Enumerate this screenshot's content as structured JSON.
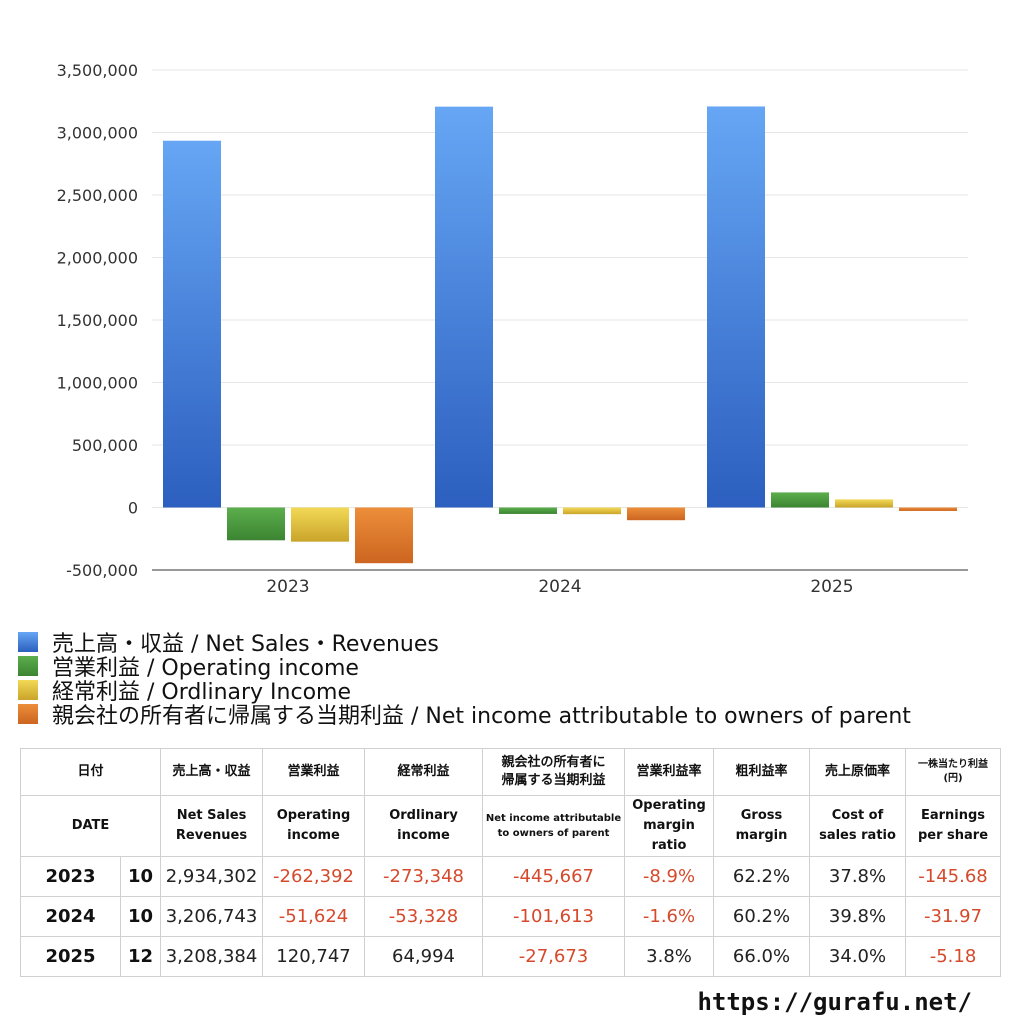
{
  "chart_data": {
    "type": "bar",
    "categories": [
      "2023",
      "2024",
      "2025"
    ],
    "ylim": [
      -500000,
      3500000
    ],
    "yticks": [
      3500000,
      3000000,
      2500000,
      2000000,
      1500000,
      1000000,
      500000,
      0,
      -500000
    ],
    "ytick_labels": [
      "3,500,000",
      "3,000,000",
      "2,500,000",
      "2,000,000",
      "1,500,000",
      "1,000,000",
      "500,000",
      "0",
      "-500,000"
    ],
    "grid": true,
    "legend_position": "bottom",
    "series": [
      {
        "name": "売上高・収益 / Net Sales・Revenues",
        "color": "#4d8ee8",
        "values": [
          2934302,
          3206743,
          3208384
        ]
      },
      {
        "name": "営業利益 / Operating income",
        "color": "#4c9a3f",
        "values": [
          -262392,
          -51624,
          120747
        ]
      },
      {
        "name": "経常利益 / Ordlinary Income",
        "color": "#e0c23a",
        "values": [
          -273348,
          -53328,
          64994
        ]
      },
      {
        "name": "親会社の所有者に帰属する当期利益 / Net income attributable to owners of parent",
        "color": "#e07b2c",
        "values": [
          -445667,
          -101613,
          -27673
        ]
      }
    ]
  },
  "table": {
    "header_jp": [
      "日付",
      "売上高・収益",
      "営業利益",
      "経常利益",
      "親会社の所有者に",
      "帰属する当期利益",
      "営業利益率",
      "粗利益率",
      "売上原価率",
      "一株当たり利益",
      "(円)"
    ],
    "header_en": {
      "date": "DATE",
      "sales": [
        "Net Sales",
        "Revenues"
      ],
      "op": [
        "Operating",
        "income"
      ],
      "ord": [
        "Ordlinary",
        "income"
      ],
      "net": [
        "Net income attributable",
        "to owners of parent"
      ],
      "opm": [
        "Operating",
        "margin",
        "ratio"
      ],
      "gm": [
        "Gross",
        "margin"
      ],
      "cos": [
        "Cost of",
        "sales ratio"
      ],
      "eps": [
        "Earnings",
        "per share"
      ]
    },
    "rows": [
      {
        "year": "2023",
        "month": "10",
        "sales": "2,934,302",
        "op": "-262,392",
        "ord": "-273,348",
        "net": "-445,667",
        "opm": "-8.9%",
        "gm": "62.2%",
        "cos": "37.8%",
        "eps": "-145.68"
      },
      {
        "year": "2024",
        "month": "10",
        "sales": "3,206,743",
        "op": "-51,624",
        "ord": "-53,328",
        "net": "-101,613",
        "opm": "-1.6%",
        "gm": "60.2%",
        "cos": "39.8%",
        "eps": "-31.97"
      },
      {
        "year": "2025",
        "month": "12",
        "sales": "3,208,384",
        "op": "120,747",
        "ord": "64,994",
        "net": "-27,673",
        "opm": "3.8%",
        "gm": "66.0%",
        "cos": "34.0%",
        "eps": "-5.18"
      }
    ]
  },
  "footer": {
    "url": "https://gurafu.net/"
  }
}
